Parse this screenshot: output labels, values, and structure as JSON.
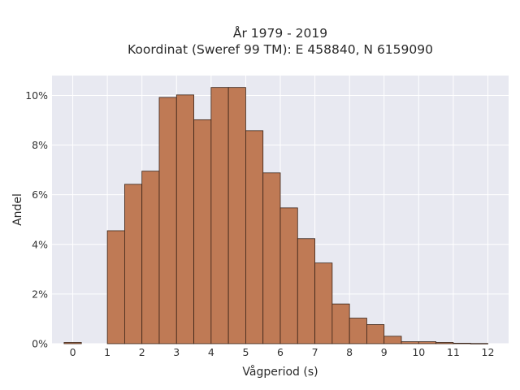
{
  "chart_data": {
    "type": "bar",
    "title": "År 1979 - 2019",
    "subtitle": "Koordinat (Sweref 99 TM): E 458840, N 6159090",
    "xlabel": "Vågperiod (s)",
    "ylabel": "Andel",
    "bin_width": 0.5,
    "bin_starts": [
      -0.25,
      1.0,
      1.5,
      2.0,
      2.5,
      3.0,
      3.5,
      4.0,
      4.5,
      5.0,
      5.5,
      6.0,
      6.5,
      7.0,
      7.5,
      8.0,
      8.5,
      9.0,
      9.5,
      10.0,
      10.5,
      11.0,
      11.5
    ],
    "values": [
      0.05,
      4.55,
      6.42,
      6.95,
      9.92,
      10.02,
      9.02,
      10.32,
      10.32,
      8.58,
      6.88,
      5.47,
      4.23,
      3.25,
      1.6,
      1.03,
      0.77,
      0.3,
      0.08,
      0.08,
      0.05,
      0.02,
      0.01
    ],
    "xlim": [
      -0.6,
      12.6
    ],
    "ylim": [
      0,
      10.8
    ],
    "x_ticks": [
      0,
      1,
      2,
      3,
      4,
      5,
      6,
      7,
      8,
      9,
      10,
      11,
      12
    ],
    "x_tick_labels": [
      "0",
      "1",
      "2",
      "3",
      "4",
      "5",
      "6",
      "7",
      "8",
      "9",
      "10",
      "11",
      "12"
    ],
    "y_ticks": [
      0,
      2,
      4,
      6,
      8,
      10
    ],
    "y_tick_labels": [
      "0%",
      "2%",
      "4%",
      "6%",
      "8%",
      "10%"
    ],
    "grid": true,
    "colors": {
      "bar_fill": "#bf7a55",
      "bar_edge": "#3a2418",
      "plot_bg": "#e8e9f1",
      "grid": "#ffffff"
    }
  }
}
